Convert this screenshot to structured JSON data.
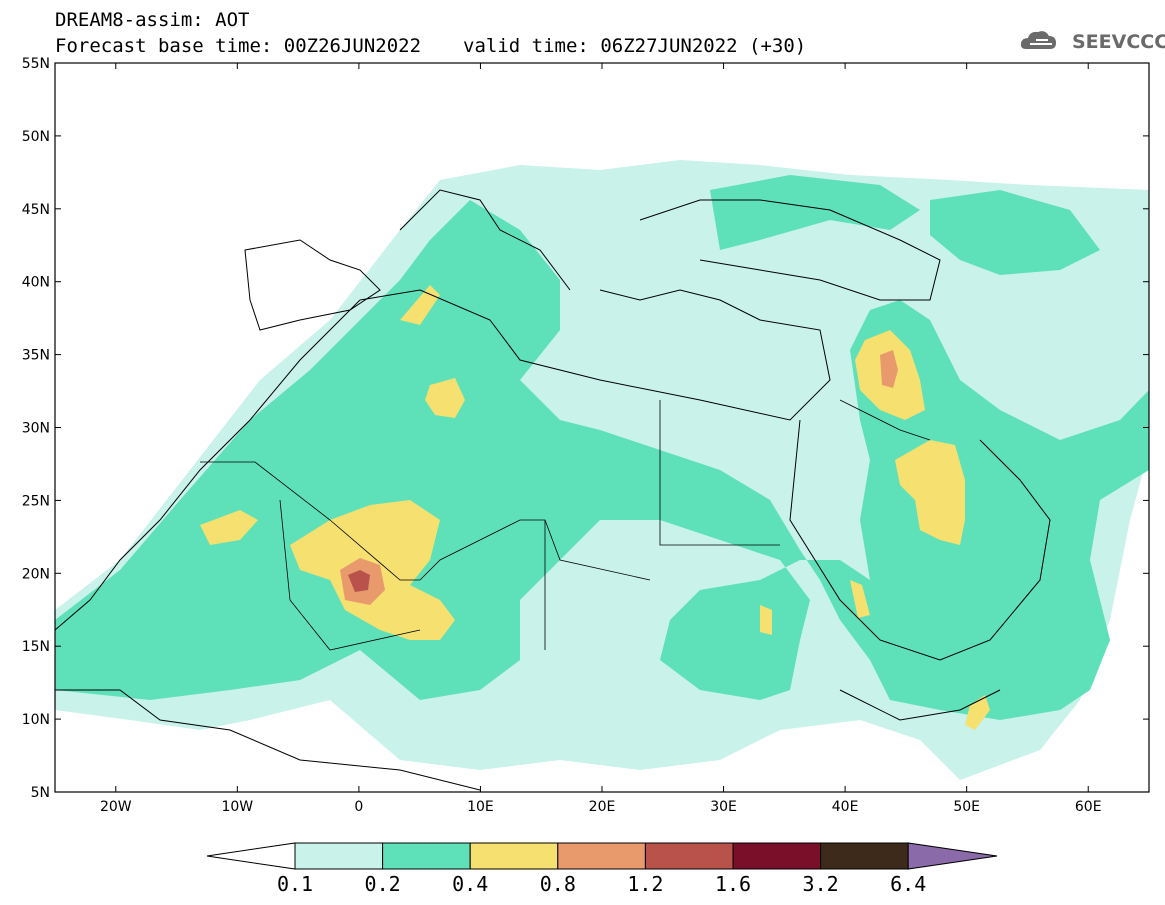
{
  "header": {
    "model_title": "DREAM8-assim: AOT",
    "base_time": "Forecast base time: 00Z26JUN2022",
    "valid_time": "valid time: 06Z27JUN2022 (+30)"
  },
  "logo": {
    "text": "SEEVCCC",
    "icon": "cloud-icon",
    "color": "#6a6a6a"
  },
  "map": {
    "lon_range": [
      -25,
      65
    ],
    "lat_range": [
      5,
      55
    ],
    "lat_labels": [
      "55N",
      "50N",
      "45N",
      "40N",
      "35N",
      "30N",
      "25N",
      "20N",
      "15N",
      "10N",
      "5N"
    ],
    "lon_labels": [
      "20W",
      "10W",
      "0",
      "10E",
      "20E",
      "30E",
      "40E",
      "50E",
      "60E"
    ]
  },
  "colorbar": {
    "levels": [
      "0.1",
      "0.2",
      "0.4",
      "0.8",
      "1.2",
      "1.6",
      "3.2",
      "6.4"
    ],
    "colors": [
      "#ffffff",
      "#c8f2ea",
      "#5ee0b8",
      "#f5e070",
      "#e89a6c",
      "#b8524a",
      "#7a0f2a",
      "#3d2a1a",
      "#8a6aa8"
    ]
  }
}
